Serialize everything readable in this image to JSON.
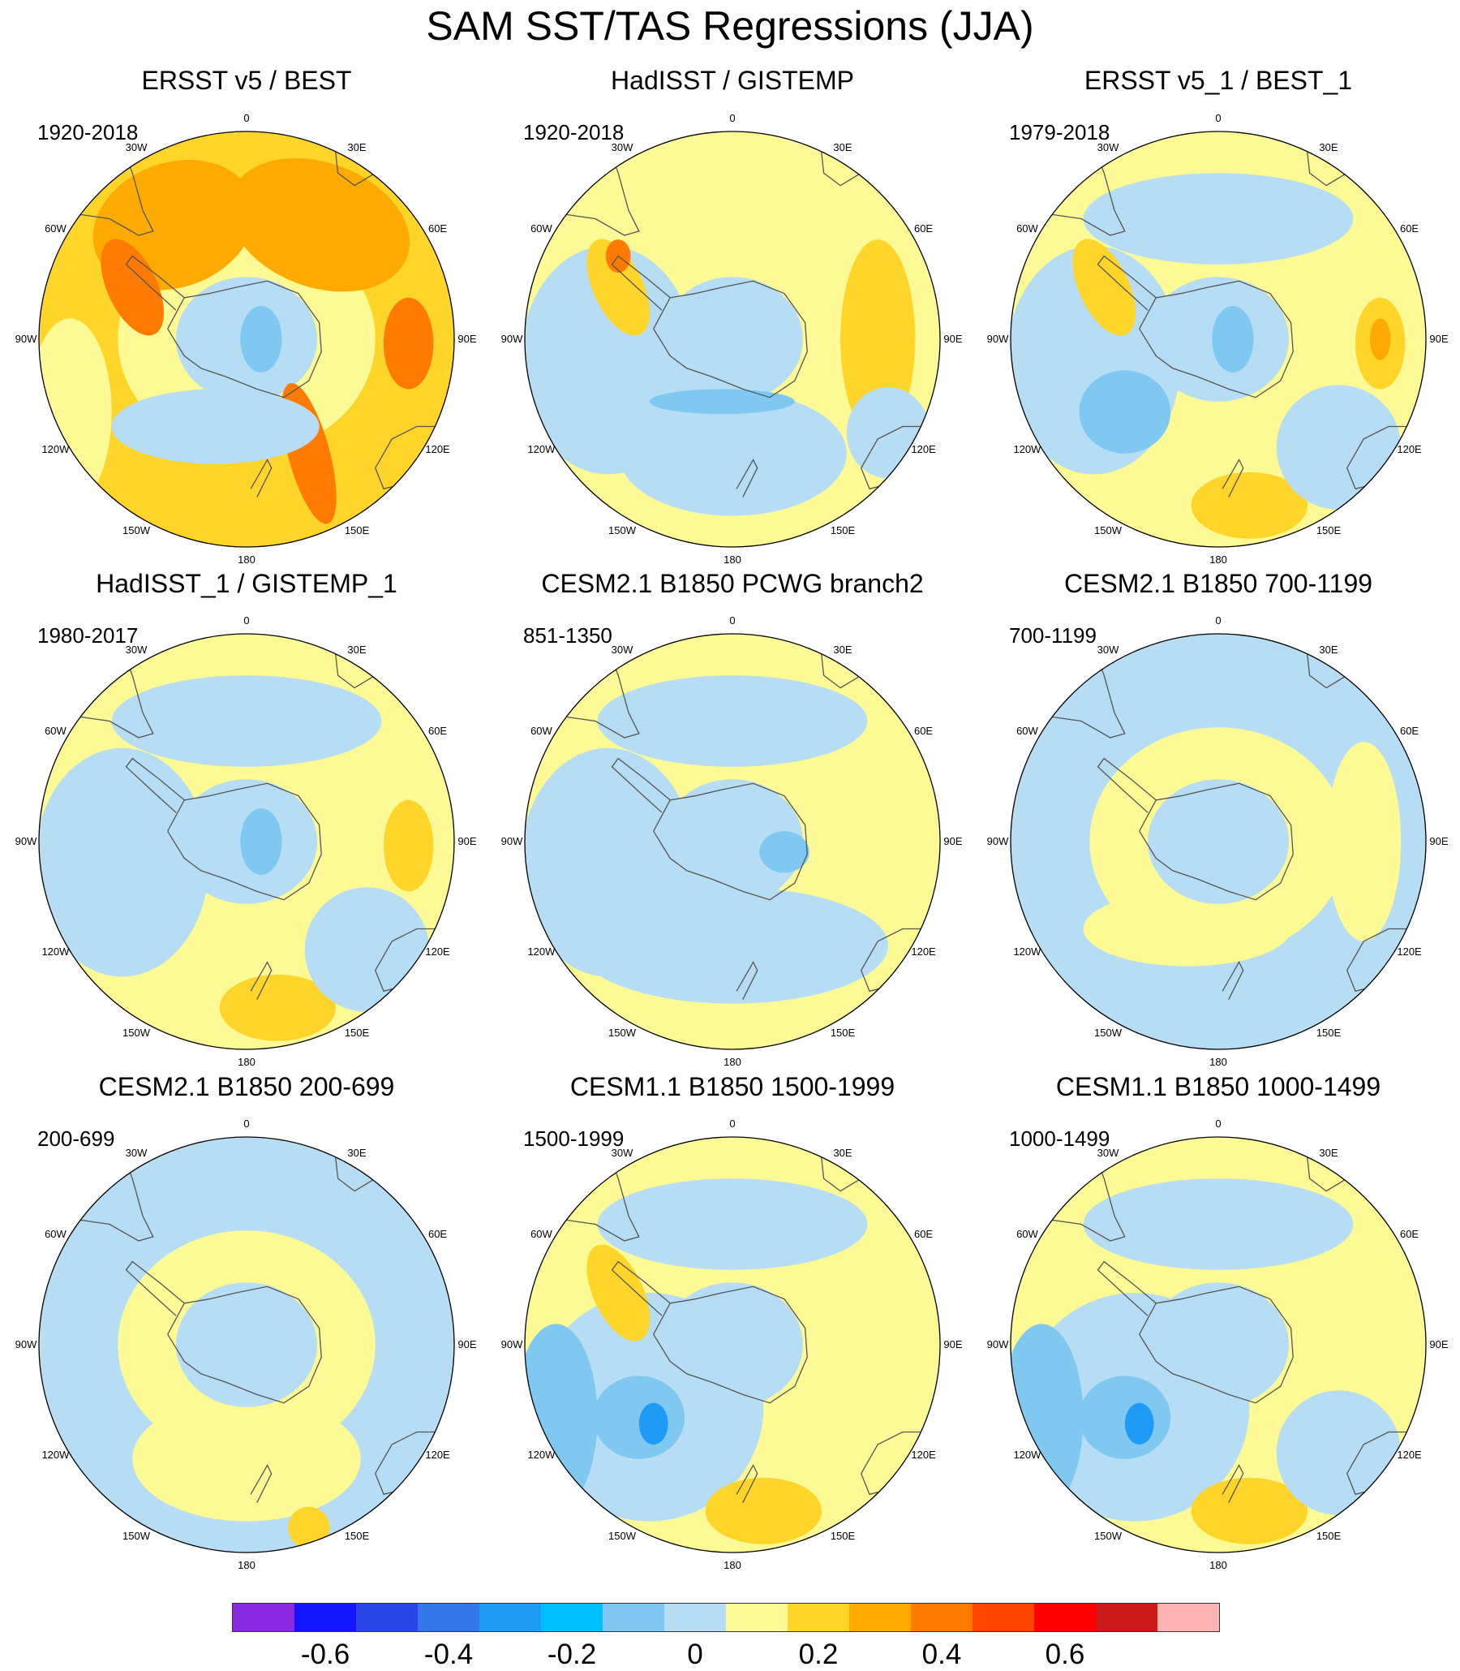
{
  "title": "SAM SST/TAS Regressions (JJA)",
  "panels": [
    {
      "title": "ERSST v5 / BEST",
      "period": "1920-2018",
      "base": "#ffd52a",
      "blobs": [
        {
          "color": "#fdfa95",
          "shape": "ring"
        },
        {
          "color": "#b6ddf3",
          "shape": "cap"
        },
        {
          "color": "#7ec8f1",
          "shape": "spot-ant"
        },
        {
          "color": "#ffaa00",
          "shape": "ne-patch"
        },
        {
          "color": "#ffaa00",
          "shape": "nw-patch"
        },
        {
          "color": "#ff7a00",
          "shape": "east-spot"
        },
        {
          "color": "#ff7a00",
          "shape": "se-stripe"
        },
        {
          "color": "#ff7a00",
          "shape": "peninsula"
        },
        {
          "color": "#fdfa95",
          "shape": "west-edge"
        },
        {
          "color": "#b6ddf3",
          "shape": "sw-arc"
        }
      ]
    },
    {
      "title": "HadISST / GISTEMP",
      "period": "1920-2018",
      "base": "#fdfa95",
      "blobs": [
        {
          "color": "#b6ddf3",
          "shape": "cap"
        },
        {
          "color": "#b6ddf3",
          "shape": "west-wide"
        },
        {
          "color": "#b6ddf3",
          "shape": "south-patch"
        },
        {
          "color": "#7ec8f1",
          "shape": "south-band"
        },
        {
          "color": "#ffd52a",
          "shape": "east-band"
        },
        {
          "color": "#ffd52a",
          "shape": "peninsula"
        },
        {
          "color": "#ff7a00",
          "shape": "pen-spot"
        },
        {
          "color": "#b6ddf3",
          "shape": "east-edge"
        }
      ]
    },
    {
      "title": "ERSST v5_1 / BEST_1",
      "period": "1979-2018",
      "base": "#fdfa95",
      "blobs": [
        {
          "color": "#b6ddf3",
          "shape": "west-wide"
        },
        {
          "color": "#b6ddf3",
          "shape": "north-band"
        },
        {
          "color": "#b6ddf3",
          "shape": "cap"
        },
        {
          "color": "#7ec8f1",
          "shape": "spot-ant"
        },
        {
          "color": "#7ec8f1",
          "shape": "sw-spot"
        },
        {
          "color": "#ffd52a",
          "shape": "east-spot"
        },
        {
          "color": "#ffaa00",
          "shape": "east-core"
        },
        {
          "color": "#ffd52a",
          "shape": "south-patch2"
        },
        {
          "color": "#b6ddf3",
          "shape": "se-patch"
        },
        {
          "color": "#ffd52a",
          "shape": "peninsula"
        }
      ]
    },
    {
      "title": "HadISST_1 / GISTEMP_1",
      "period": "1980-2017",
      "base": "#fdfa95",
      "blobs": [
        {
          "color": "#b6ddf3",
          "shape": "west-wide"
        },
        {
          "color": "#b6ddf3",
          "shape": "cap"
        },
        {
          "color": "#7ec8f1",
          "shape": "spot-ant"
        },
        {
          "color": "#b6ddf3",
          "shape": "north-band"
        },
        {
          "color": "#ffd52a",
          "shape": "south-patch2"
        },
        {
          "color": "#ffd52a",
          "shape": "east-spot"
        },
        {
          "color": "#b6ddf3",
          "shape": "se-patch"
        }
      ]
    },
    {
      "title": "CESM2.1 B1850 PCWG branch2",
      "period": "851-1350",
      "base": "#fdfa95",
      "blobs": [
        {
          "color": "#b6ddf3",
          "shape": "west-wide"
        },
        {
          "color": "#b6ddf3",
          "shape": "south-arc"
        },
        {
          "color": "#b6ddf3",
          "shape": "north-band"
        },
        {
          "color": "#b6ddf3",
          "shape": "cap"
        },
        {
          "color": "#7ec8f1",
          "shape": "east-ant"
        }
      ]
    },
    {
      "title": "CESM2.1 B1850 700-1199",
      "period": "700-1199",
      "base": "#b6ddf3",
      "blobs": [
        {
          "color": "#fdfa95",
          "shape": "ring"
        },
        {
          "color": "#fdfa95",
          "shape": "east-band"
        },
        {
          "color": "#fdfa95",
          "shape": "sw-arc"
        },
        {
          "color": "#b6ddf3",
          "shape": "cap"
        }
      ]
    },
    {
      "title": "CESM2.1 B1850 200-699",
      "period": "200-699",
      "base": "#b6ddf3",
      "blobs": [
        {
          "color": "#fdfa95",
          "shape": "ring"
        },
        {
          "color": "#fdfa95",
          "shape": "south-patch"
        },
        {
          "color": "#b6ddf3",
          "shape": "cap"
        },
        {
          "color": "#ffd52a",
          "shape": "south-spot"
        }
      ]
    },
    {
      "title": "CESM1.1 B1850 1500-1999",
      "period": "1500-1999",
      "base": "#fdfa95",
      "blobs": [
        {
          "color": "#b6ddf3",
          "shape": "north-band"
        },
        {
          "color": "#b6ddf3",
          "shape": "sw-big"
        },
        {
          "color": "#7ec8f1",
          "shape": "sw-spot"
        },
        {
          "color": "#1e9bf5",
          "shape": "sw-core"
        },
        {
          "color": "#b6ddf3",
          "shape": "cap"
        },
        {
          "color": "#ffd52a",
          "shape": "south-patch2"
        },
        {
          "color": "#ffd52a",
          "shape": "peninsula"
        },
        {
          "color": "#7ec8f1",
          "shape": "west-edge"
        }
      ]
    },
    {
      "title": "CESM1.1 B1850 1000-1499",
      "period": "1000-1499",
      "base": "#fdfa95",
      "blobs": [
        {
          "color": "#b6ddf3",
          "shape": "north-band"
        },
        {
          "color": "#b6ddf3",
          "shape": "sw-big"
        },
        {
          "color": "#7ec8f1",
          "shape": "sw-spot"
        },
        {
          "color": "#1e9bf5",
          "shape": "sw-core"
        },
        {
          "color": "#b6ddf3",
          "shape": "cap"
        },
        {
          "color": "#ffd52a",
          "shape": "south-patch2"
        },
        {
          "color": "#7ec8f1",
          "shape": "west-edge"
        },
        {
          "color": "#b6ddf3",
          "shape": "se-patch"
        }
      ]
    }
  ],
  "longitude_labels": [
    "0",
    "30E",
    "60E",
    "90E",
    "120E",
    "150E",
    "180",
    "150W",
    "120W",
    "90W",
    "60W",
    "30W"
  ],
  "colorbar": {
    "colors": [
      "#8a2be2",
      "#1414ff",
      "#2a46e6",
      "#3278ea",
      "#1e9bf5",
      "#00bfff",
      "#7ec8f1",
      "#b6ddf3",
      "#fdfa95",
      "#ffd52a",
      "#ffaa00",
      "#ff7a00",
      "#ff4500",
      "#ff0000",
      "#cc1a1a",
      "#ffb3b3"
    ],
    "tick_labels": [
      "-0.6",
      "-0.4",
      "-0.2",
      "0",
      "0.2",
      "0.4",
      "0.6"
    ],
    "tick_values": [
      -0.6,
      -0.4,
      -0.2,
      0,
      0.2,
      0.4,
      0.6
    ]
  }
}
